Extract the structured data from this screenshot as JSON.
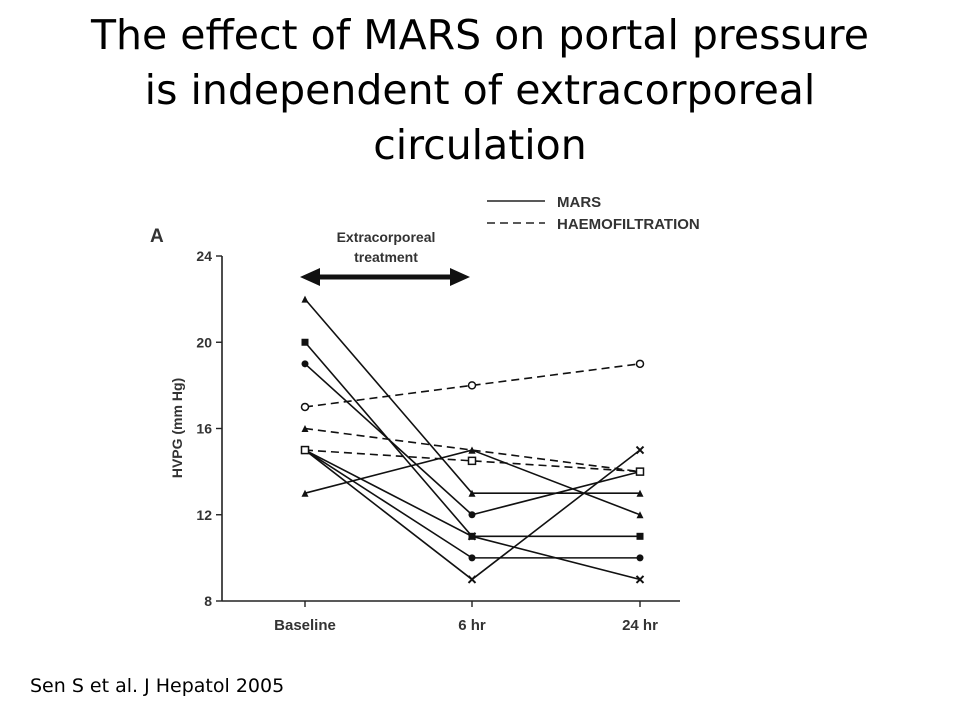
{
  "slide": {
    "title_lines": [
      "The effect of MARS on portal pressure",
      "is independent of extracorporeal",
      "circulation"
    ],
    "citation": "Sen S et al. J Hepatol 2005"
  },
  "chart_data": {
    "type": "line",
    "panel_label": "A",
    "title": "",
    "xlabel": "",
    "ylabel": "HVPG (mm Hg)",
    "categories": [
      "Baseline",
      "6 hr",
      "24 hr"
    ],
    "ylim": [
      8,
      24
    ],
    "yticks": [
      8,
      12,
      16,
      20,
      24
    ],
    "grid": false,
    "legend_position": "top-right",
    "legend": [
      {
        "label": "MARS",
        "style": "solid"
      },
      {
        "label": "HAEMOFILTRATION",
        "style": "dashed"
      }
    ],
    "annotation": {
      "text_lines": [
        "Extracorporeal",
        "treatment"
      ],
      "arrow": "double-headed",
      "spans_from": "Baseline"
    },
    "series": [
      {
        "group": "MARS",
        "style": "solid",
        "marker": "triangle",
        "values": [
          22,
          13,
          13
        ]
      },
      {
        "group": "MARS",
        "style": "solid",
        "marker": "square",
        "values": [
          20,
          11,
          11
        ]
      },
      {
        "group": "MARS",
        "style": "solid",
        "marker": "circle",
        "values": [
          19,
          12,
          14
        ]
      },
      {
        "group": "MARS",
        "style": "solid",
        "marker": "x",
        "values": [
          15,
          9,
          15
        ]
      },
      {
        "group": "MARS",
        "style": "solid",
        "marker": "circle",
        "values": [
          15,
          10,
          10
        ]
      },
      {
        "group": "MARS",
        "style": "solid",
        "marker": "x",
        "values": [
          15,
          11,
          9
        ]
      },
      {
        "group": "MARS",
        "style": "solid",
        "marker": "triangle",
        "values": [
          13,
          15,
          12
        ]
      },
      {
        "group": "HAEMOFILTRATION",
        "style": "dashed",
        "marker": "open-circle",
        "values": [
          17,
          18,
          19
        ]
      },
      {
        "group": "HAEMOFILTRATION",
        "style": "dashed",
        "marker": "triangle",
        "values": [
          16,
          15,
          14
        ]
      },
      {
        "group": "HAEMOFILTRATION",
        "style": "dashed",
        "marker": "open-square",
        "values": [
          15,
          14.5,
          14
        ]
      }
    ]
  }
}
